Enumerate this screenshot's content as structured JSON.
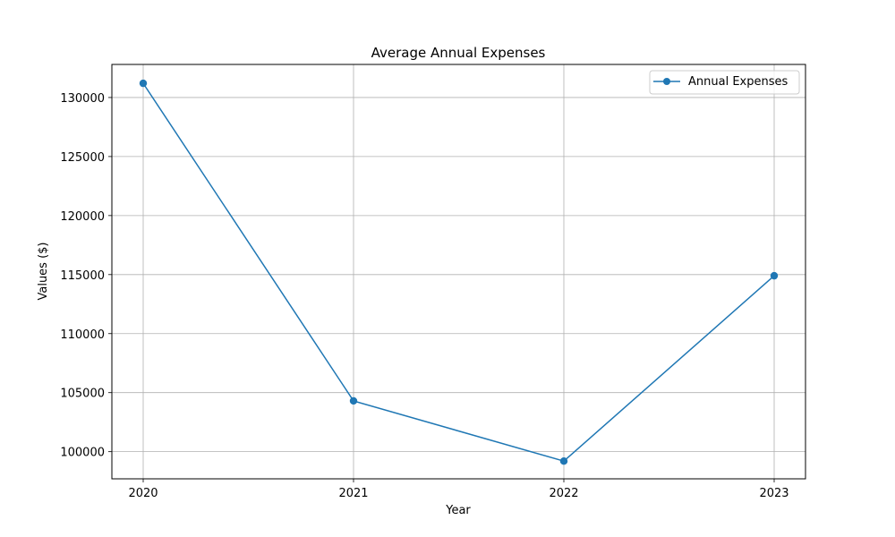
{
  "chart_data": {
    "type": "line",
    "title": "Average Annual Expenses",
    "xlabel": "Year",
    "ylabel": "Values ($)",
    "categories": [
      "2020",
      "2021",
      "2022",
      "2023"
    ],
    "series": [
      {
        "name": "Annual Expenses",
        "values": [
          131200,
          104300,
          99200,
          114900
        ],
        "color": "#1f77b4"
      }
    ],
    "yticks": [
      100000,
      105000,
      110000,
      115000,
      120000,
      125000,
      130000
    ],
    "ylim": [
      97700,
      132800
    ],
    "grid": true,
    "legend_position": "top-right"
  }
}
